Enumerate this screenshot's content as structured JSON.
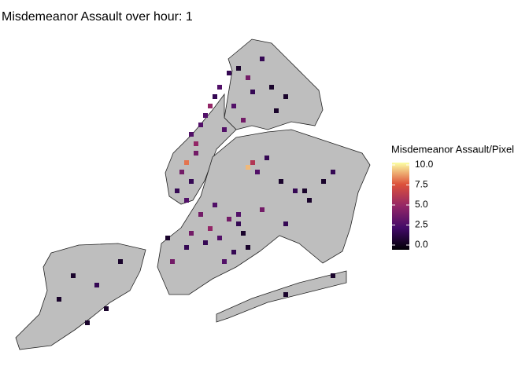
{
  "chart_data": {
    "type": "heatmap-map",
    "title": "Misdemeanor Assault over hour: 1",
    "legend_title": "Misdemeanor Assault/Pixel",
    "colors": [
      "#000004",
      "#420a68",
      "#932667",
      "#dd513a",
      "#fcffa4"
    ],
    "clim": [
      0,
      10
    ],
    "cticks": [
      {
        "value": 0,
        "label": "0.0"
      },
      2.5,
      {
        "value": 5,
        "label": "5.0"
      },
      7.5,
      {
        "value": 10,
        "label": "10.0"
      }
    ],
    "x": [
      40,
      41,
      39,
      38,
      40,
      42,
      37,
      39,
      41,
      43,
      44,
      45,
      46,
      48,
      50,
      52,
      55,
      57,
      60,
      49,
      51,
      53,
      47,
      58,
      52,
      53,
      54,
      56,
      59,
      62,
      65,
      50,
      55,
      60,
      64,
      68,
      70,
      45,
      42,
      44,
      46,
      48,
      50,
      52,
      40,
      43,
      47,
      49,
      51,
      39,
      36,
      35,
      15,
      20,
      12,
      25,
      22,
      18,
      60,
      70
    ],
    "y": [
      28,
      30,
      34,
      36,
      38,
      26,
      40,
      42,
      32,
      24,
      22,
      20,
      18,
      15,
      14,
      16,
      12,
      18,
      20,
      22,
      25,
      19,
      27,
      23,
      35,
      34,
      36,
      33,
      38,
      40,
      42,
      45,
      44,
      47,
      40,
      38,
      36,
      43,
      45,
      48,
      50,
      46,
      47,
      52,
      49,
      51,
      55,
      53,
      49,
      52,
      55,
      50,
      58,
      60,
      63,
      55,
      65,
      68,
      62,
      58
    ],
    "values": [
      3,
      5,
      8,
      4,
      2,
      3,
      2,
      3,
      4,
      3,
      5,
      2,
      3,
      2,
      1,
      4,
      2,
      1,
      1,
      3,
      4,
      2,
      3,
      1,
      9,
      6,
      3,
      2,
      1,
      2,
      1,
      3,
      4,
      2,
      1,
      1,
      2,
      3,
      4,
      5,
      3,
      4,
      2,
      1,
      4,
      2,
      3,
      2,
      1,
      2,
      4,
      1,
      1,
      2,
      1,
      1,
      1,
      1,
      1,
      1
    ]
  }
}
